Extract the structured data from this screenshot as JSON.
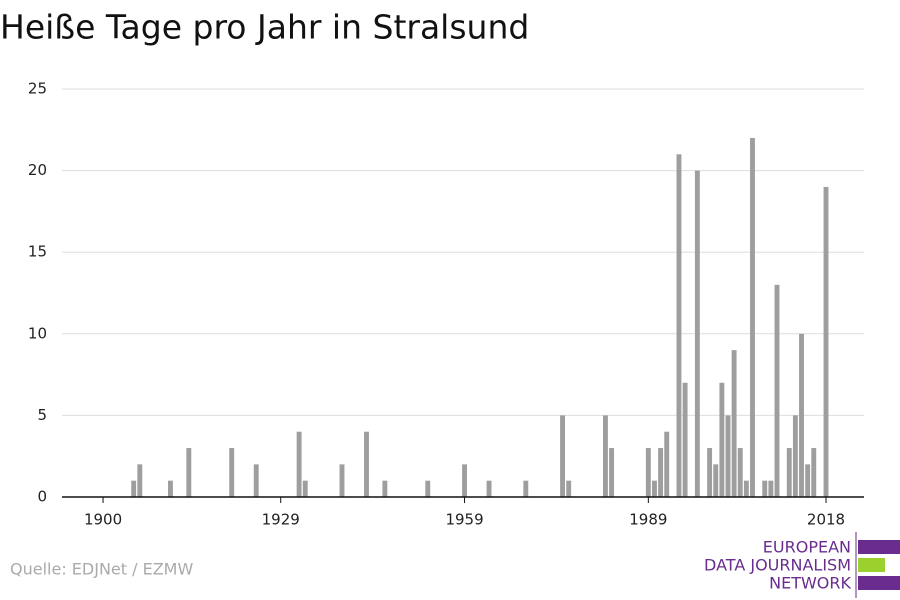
{
  "chart_data": {
    "type": "bar",
    "title": "Heiße Tage pro Jahr in Stralsund",
    "x": [
      1905,
      1906,
      1911,
      1914,
      1921,
      1925,
      1932,
      1933,
      1939,
      1943,
      1946,
      1953,
      1959,
      1963,
      1969,
      1975,
      1976,
      1982,
      1983,
      1989,
      1990,
      1991,
      1992,
      1994,
      1995,
      1997,
      1999,
      2000,
      2001,
      2002,
      2003,
      2004,
      2005,
      2006,
      2008,
      2009,
      2010,
      2012,
      2013,
      2014,
      2015,
      2016,
      2018
    ],
    "values": [
      1,
      2,
      1,
      3,
      3,
      2,
      4,
      1,
      2,
      4,
      1,
      1,
      2,
      1,
      1,
      5,
      1,
      5,
      3,
      3,
      1,
      3,
      4,
      21,
      7,
      20,
      3,
      2,
      7,
      5,
      9,
      3,
      1,
      22,
      1,
      1,
      13,
      3,
      5,
      10,
      2,
      3,
      19
    ],
    "color": "#9e9e9e",
    "xlim": [
      1893.3,
      2024.2
    ],
    "xticks": [
      1900,
      1929,
      1959,
      1989,
      2018
    ],
    "ylim": [
      0,
      25
    ],
    "yticks": [
      0,
      5,
      10,
      15,
      20,
      25
    ],
    "grid": true,
    "source": "Quelle: EDJNet / EZMW",
    "logo": [
      "EUROPEAN",
      "DATA JOURNALISM",
      "NETWORK"
    ]
  }
}
